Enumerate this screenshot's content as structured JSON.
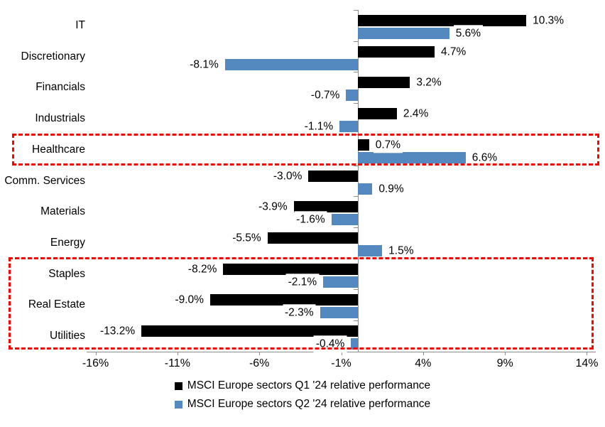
{
  "chart_data": {
    "type": "bar",
    "orientation": "horizontal",
    "title": "",
    "categories": [
      "IT",
      "Discretionary",
      "Financials",
      "Industrials",
      "Healthcare",
      "Comm. Services",
      "Materials",
      "Energy",
      "Staples",
      "Real Estate",
      "Utilities"
    ],
    "series": [
      {
        "name": "MSCI Europe sectors Q1 '24 relative performance",
        "color": "#000000",
        "values": [
          10.3,
          4.7,
          3.2,
          2.4,
          0.7,
          -3.0,
          -3.9,
          -5.5,
          -8.2,
          -9.0,
          -13.2
        ],
        "labels": [
          "10.3%",
          "4.7%",
          "3.2%",
          "2.4%",
          "0.7%",
          "-3.0%",
          "-3.9%",
          "-5.5%",
          "-8.2%",
          "-9.0%",
          "-13.2%"
        ]
      },
      {
        "name": "MSCI Europe sectors Q2 '24 relative performance",
        "color": "#5389BE",
        "values": [
          5.6,
          -8.1,
          -0.7,
          -1.1,
          6.6,
          0.9,
          -1.6,
          1.5,
          -2.1,
          -2.3,
          -0.4
        ],
        "labels": [
          "5.6%",
          "-8.1%",
          "-0.7%",
          "-1.1%",
          "6.6%",
          "0.9%",
          "-1.6%",
          "1.5%",
          "-2.1%",
          "-2.3%",
          "-0.4%"
        ]
      }
    ],
    "x_axis": {
      "min": -16.5,
      "max": 14.5,
      "ticks": [
        {
          "value": -16,
          "label": "-16%"
        },
        {
          "value": -11,
          "label": "-11%"
        },
        {
          "value": -6,
          "label": "-6%"
        },
        {
          "value": -1,
          "label": "-1%"
        },
        {
          "value": 4,
          "label": "4%"
        },
        {
          "value": 9,
          "label": "9%"
        },
        {
          "value": 14,
          "label": "14%"
        }
      ]
    },
    "highlights": [
      {
        "name": "healthcare-highlight",
        "sectors": [
          "Healthcare"
        ],
        "color": "#FF0000"
      },
      {
        "name": "defensives-highlight",
        "sectors": [
          "Staples",
          "Real Estate",
          "Utilities"
        ],
        "color": "#FF0000"
      }
    ],
    "legend_position": "bottom",
    "grid": false,
    "axis_color": "#8C8C8C",
    "label_background": "#FFFFFF"
  }
}
